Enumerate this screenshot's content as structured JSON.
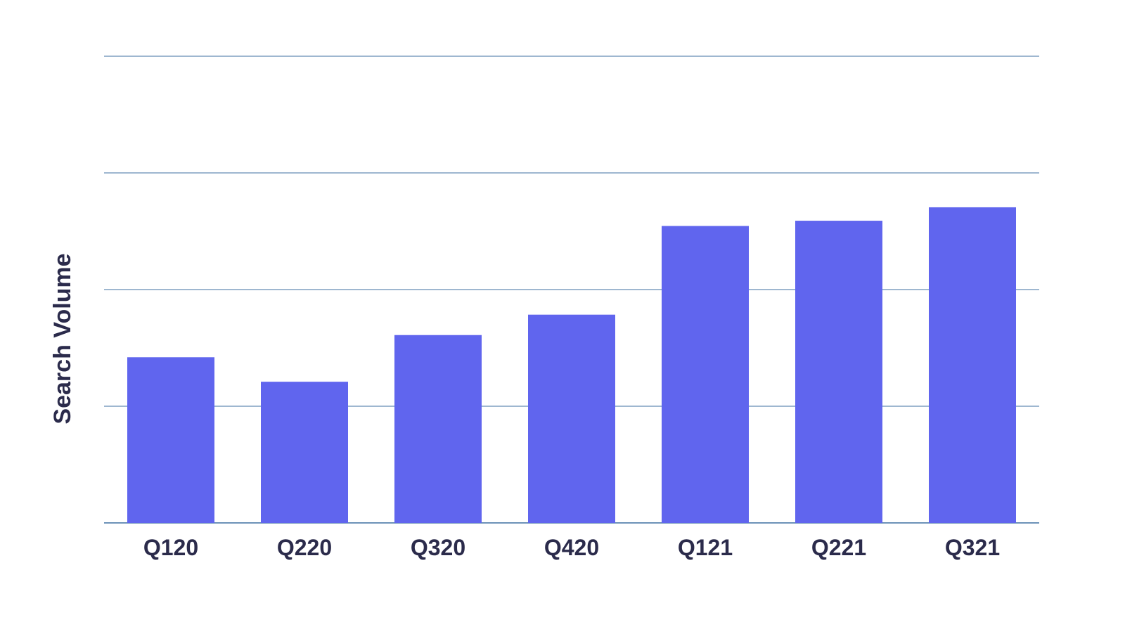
{
  "chart_data": {
    "type": "bar",
    "title": "",
    "xlabel": "",
    "ylabel": "Search Volume",
    "categories": [
      "Q120",
      "Q220",
      "Q320",
      "Q420",
      "Q121",
      "Q221",
      "Q321"
    ],
    "values": [
      56.8,
      48.4,
      64.4,
      71.4,
      101.8,
      103.6,
      108.2
    ],
    "ylim": [
      0,
      160
    ],
    "yticks": [
      0,
      40,
      80,
      120,
      160
    ],
    "y_tick_labels_shown": false,
    "grid": true,
    "legend": "none"
  },
  "colors": {
    "bar": "#6065ee",
    "grid": "#3d6fa1",
    "axis_text": "#2b2b4b",
    "background": "#ffffff"
  }
}
